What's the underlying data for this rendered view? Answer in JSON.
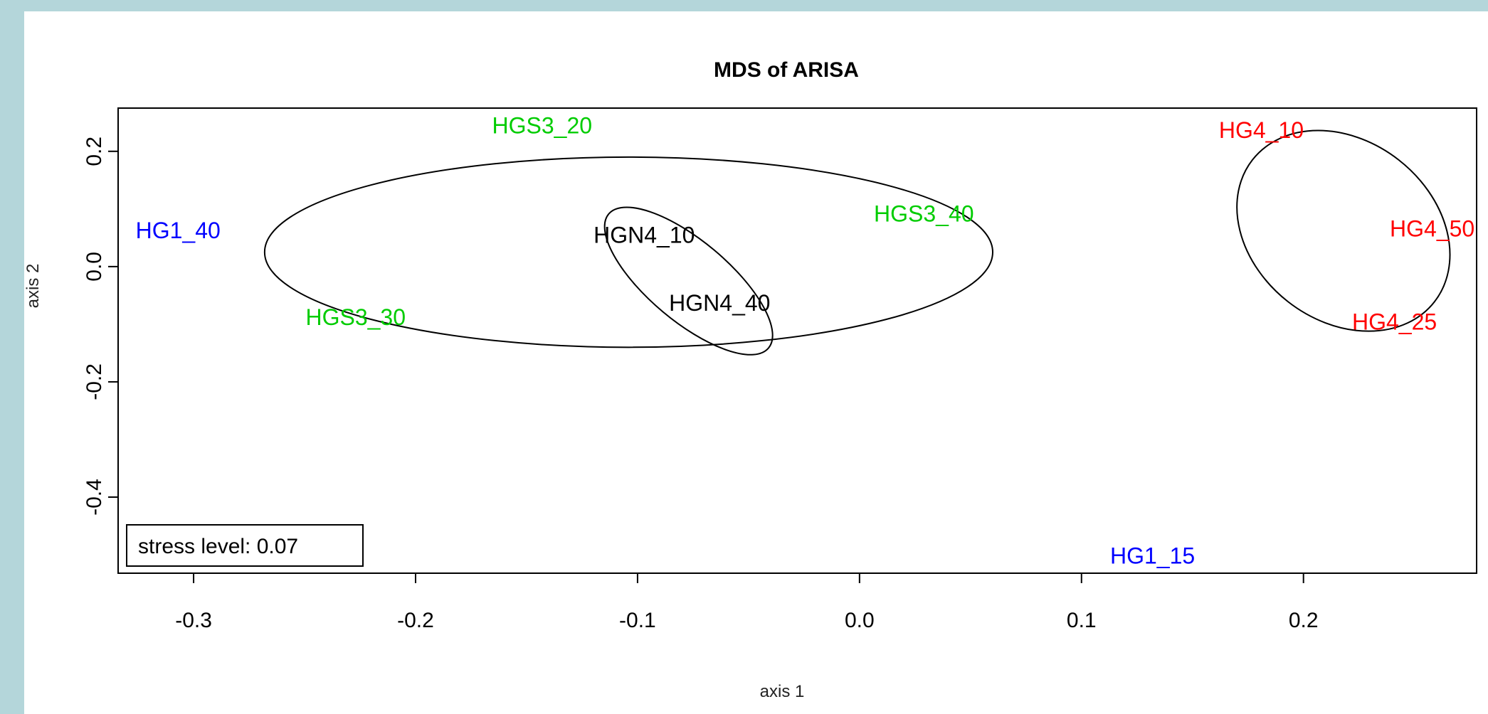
{
  "chart_data": {
    "type": "scatter",
    "title": "MDS of ARISA",
    "xlabel": "axis 1",
    "ylabel": "axis 2",
    "xlim": [
      -0.334,
      0.278
    ],
    "ylim": [
      -0.532,
      0.275
    ],
    "x_ticks": [
      -0.3,
      -0.2,
      -0.1,
      0.0,
      0.1,
      0.2
    ],
    "x_tick_labels": [
      "-0.3",
      "-0.2",
      "-0.1",
      "0.0",
      "0.1",
      "0.2"
    ],
    "y_ticks": [
      -0.4,
      -0.2,
      0.0,
      0.2
    ],
    "y_tick_labels": [
      "-0.4",
      "-0.2",
      "0.0",
      "0.2"
    ],
    "grid": false,
    "colors": {
      "HG1": "#0000ff",
      "HGS3": "#00cc00",
      "HGN4": "#000000",
      "HG4": "#ff0000",
      "ellipse": "#000000"
    },
    "points": [
      {
        "label": "HG1_40",
        "group": "HG1",
        "x": -0.307,
        "y": 0.063
      },
      {
        "label": "HG1_15",
        "group": "HG1",
        "x": 0.132,
        "y": -0.502
      },
      {
        "label": "HGS3_20",
        "group": "HGS3",
        "x": -0.143,
        "y": 0.245
      },
      {
        "label": "HGS3_40",
        "group": "HGS3",
        "x": 0.029,
        "y": 0.092
      },
      {
        "label": "HGS3_30",
        "group": "HGS3",
        "x": -0.227,
        "y": -0.088
      },
      {
        "label": "HGN4_10",
        "group": "HGN4",
        "x": -0.097,
        "y": 0.055
      },
      {
        "label": "HGN4_40",
        "group": "HGN4",
        "x": -0.063,
        "y": -0.063
      },
      {
        "label": "HG4_10",
        "group": "HG4",
        "x": 0.181,
        "y": 0.237
      },
      {
        "label": "HG4_50",
        "group": "HG4",
        "x": 0.258,
        "y": 0.066
      },
      {
        "label": "HG4_25",
        "group": "HG4",
        "x": 0.241,
        "y": -0.096
      }
    ],
    "ellipses": [
      {
        "group": "HGS3",
        "cx": -0.104,
        "cy": 0.025,
        "rx": 0.164,
        "ry": 0.275,
        "angle_deg": 0
      },
      {
        "group": "HGN4",
        "cx": -0.077,
        "cy": -0.025,
        "rx": 0.047,
        "ry": 0.116,
        "angle_deg": 40
      },
      {
        "group": "HG4",
        "cx": 0.218,
        "cy": 0.062,
        "rx": 0.052,
        "ry": 0.26,
        "angle_deg": 38
      }
    ],
    "legend": {
      "text": "stress level: 0.07",
      "position": "bottom-left"
    }
  }
}
